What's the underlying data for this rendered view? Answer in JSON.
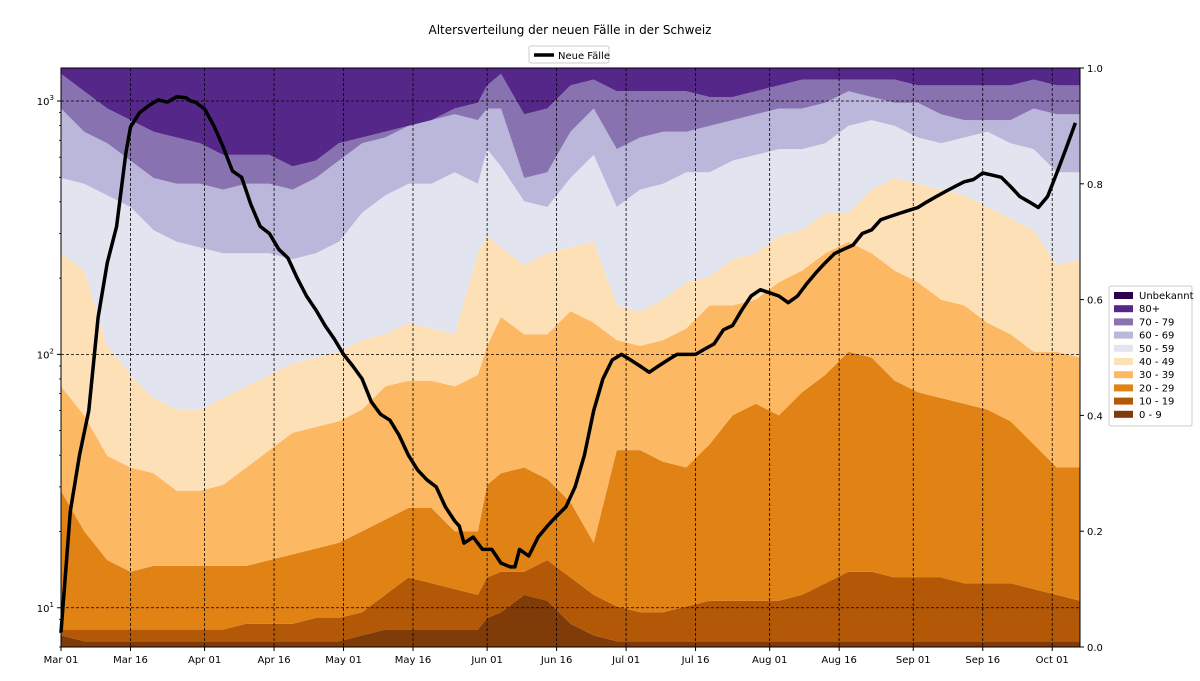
{
  "chart_data": {
    "type": "area",
    "stacking": "fraction",
    "title": "Altersverteilung der neuen Fälle in der Schweiz",
    "x_tick_labels": [
      "Mar 01",
      "Mar 16",
      "Apr 01",
      "Apr 16",
      "May 01",
      "May 16",
      "Jun 01",
      "Jun 16",
      "Jul 01",
      "Jul 16",
      "Aug 01",
      "Aug 16",
      "Sep 01",
      "Sep 16",
      "Oct 01"
    ],
    "x_tick_days": [
      0,
      15,
      31,
      46,
      61,
      76,
      92,
      107,
      122,
      137,
      153,
      168,
      184,
      199,
      214
    ],
    "x_range_days": [
      0,
      220
    ],
    "left_axis": {
      "scale": "log",
      "range": [
        7,
        1350
      ],
      "ticks": [
        {
          "value": 10,
          "base": "10",
          "exp": "1"
        },
        {
          "value": 100,
          "base": "10",
          "exp": "2"
        },
        {
          "value": 1000,
          "base": "10",
          "exp": "3"
        }
      ]
    },
    "right_axis": {
      "range": [
        0,
        1
      ],
      "tick_values": [
        0,
        0.2,
        0.4,
        0.6,
        0.8,
        1.0
      ],
      "tick_labels": [
        "0.0",
        "0.2",
        "0.4",
        "0.6",
        "0.8",
        "1.0"
      ]
    },
    "grid": "dashed",
    "area_legend_position": "right",
    "area_series": [
      {
        "name": "0 - 9",
        "color": "#7f3b08"
      },
      {
        "name": "10 - 19",
        "color": "#b35806"
      },
      {
        "name": "20 - 29",
        "color": "#e08214"
      },
      {
        "name": "30 - 39",
        "color": "#fdb863"
      },
      {
        "name": "40 - 49",
        "color": "#fee0b6"
      },
      {
        "name": "50 - 59",
        "color": "#e2e4f0"
      },
      {
        "name": "60 - 69",
        "color": "#bbb7da"
      },
      {
        "name": "70 - 79",
        "color": "#8873b0"
      },
      {
        "name": "80+",
        "color": "#542788"
      },
      {
        "name": "Unbekannt",
        "color": "#2d004b"
      }
    ],
    "cumulative_boundaries": {
      "days": [
        0,
        5,
        10,
        15,
        20,
        25,
        30,
        35,
        40,
        45,
        50,
        55,
        60,
        65,
        70,
        75,
        80,
        85,
        90,
        92,
        95,
        100,
        105,
        110,
        115,
        120,
        125,
        130,
        135,
        140,
        145,
        150,
        155,
        160,
        165,
        170,
        175,
        180,
        185,
        190,
        195,
        200,
        205,
        210,
        215,
        220
      ],
      "b1": [
        0.02,
        0.01,
        0.01,
        0.01,
        0.01,
        0.01,
        0.01,
        0.01,
        0.01,
        0.01,
        0.01,
        0.01,
        0.01,
        0.02,
        0.03,
        0.03,
        0.03,
        0.03,
        0.03,
        0.05,
        0.06,
        0.09,
        0.08,
        0.04,
        0.02,
        0.01,
        0.01,
        0.01,
        0.01,
        0.01,
        0.01,
        0.01,
        0.01,
        0.01,
        0.01,
        0.01,
        0.01,
        0.01,
        0.01,
        0.01,
        0.01,
        0.01,
        0.01,
        0.01,
        0.01,
        0.01
      ],
      "b2": [
        0.03,
        0.03,
        0.03,
        0.03,
        0.03,
        0.03,
        0.03,
        0.03,
        0.04,
        0.04,
        0.04,
        0.05,
        0.05,
        0.06,
        0.09,
        0.12,
        0.11,
        0.1,
        0.09,
        0.12,
        0.13,
        0.13,
        0.15,
        0.12,
        0.09,
        0.07,
        0.06,
        0.06,
        0.07,
        0.08,
        0.08,
        0.08,
        0.08,
        0.09,
        0.11,
        0.13,
        0.13,
        0.12,
        0.12,
        0.12,
        0.11,
        0.11,
        0.11,
        0.1,
        0.09,
        0.08
      ],
      "b3": [
        0.27,
        0.2,
        0.15,
        0.13,
        0.14,
        0.14,
        0.14,
        0.14,
        0.14,
        0.15,
        0.16,
        0.17,
        0.18,
        0.2,
        0.22,
        0.24,
        0.24,
        0.2,
        0.2,
        0.28,
        0.3,
        0.31,
        0.29,
        0.25,
        0.18,
        0.34,
        0.34,
        0.32,
        0.31,
        0.35,
        0.4,
        0.42,
        0.4,
        0.44,
        0.47,
        0.51,
        0.5,
        0.46,
        0.44,
        0.43,
        0.42,
        0.41,
        0.39,
        0.35,
        0.31,
        0.31
      ],
      "b4": [
        0.45,
        0.4,
        0.33,
        0.31,
        0.3,
        0.27,
        0.27,
        0.28,
        0.31,
        0.34,
        0.37,
        0.38,
        0.39,
        0.41,
        0.45,
        0.46,
        0.46,
        0.45,
        0.47,
        0.52,
        0.57,
        0.54,
        0.54,
        0.58,
        0.56,
        0.53,
        0.52,
        0.53,
        0.55,
        0.59,
        0.59,
        0.6,
        0.63,
        0.65,
        0.68,
        0.7,
        0.68,
        0.65,
        0.63,
        0.6,
        0.59,
        0.56,
        0.54,
        0.51,
        0.51,
        0.5
      ],
      "b5": [
        0.68,
        0.65,
        0.52,
        0.47,
        0.43,
        0.41,
        0.41,
        0.43,
        0.45,
        0.47,
        0.49,
        0.5,
        0.51,
        0.53,
        0.54,
        0.56,
        0.55,
        0.54,
        0.68,
        0.71,
        0.69,
        0.66,
        0.68,
        0.69,
        0.7,
        0.59,
        0.58,
        0.6,
        0.63,
        0.64,
        0.67,
        0.68,
        0.71,
        0.72,
        0.75,
        0.75,
        0.79,
        0.81,
        0.8,
        0.79,
        0.78,
        0.76,
        0.74,
        0.72,
        0.66,
        0.67
      ],
      "b6": [
        0.81,
        0.8,
        0.78,
        0.76,
        0.72,
        0.7,
        0.69,
        0.68,
        0.68,
        0.68,
        0.67,
        0.68,
        0.7,
        0.75,
        0.78,
        0.8,
        0.8,
        0.82,
        0.8,
        0.86,
        0.83,
        0.77,
        0.76,
        0.81,
        0.85,
        0.76,
        0.79,
        0.8,
        0.82,
        0.82,
        0.84,
        0.85,
        0.86,
        0.86,
        0.87,
        0.9,
        0.91,
        0.9,
        0.88,
        0.87,
        0.88,
        0.89,
        0.87,
        0.86,
        0.82,
        0.82
      ],
      "b7": [
        0.93,
        0.89,
        0.87,
        0.84,
        0.81,
        0.8,
        0.8,
        0.79,
        0.8,
        0.8,
        0.79,
        0.81,
        0.84,
        0.87,
        0.88,
        0.9,
        0.91,
        0.92,
        0.91,
        0.93,
        0.93,
        0.81,
        0.82,
        0.89,
        0.93,
        0.86,
        0.88,
        0.89,
        0.89,
        0.9,
        0.91,
        0.92,
        0.93,
        0.93,
        0.94,
        0.96,
        0.95,
        0.94,
        0.94,
        0.92,
        0.91,
        0.91,
        0.91,
        0.93,
        0.92,
        0.92
      ],
      "b8": [
        0.99,
        0.96,
        0.93,
        0.91,
        0.89,
        0.88,
        0.87,
        0.85,
        0.85,
        0.85,
        0.83,
        0.84,
        0.87,
        0.88,
        0.89,
        0.9,
        0.91,
        0.93,
        0.94,
        0.97,
        0.99,
        0.92,
        0.93,
        0.97,
        0.98,
        0.96,
        0.96,
        0.96,
        0.96,
        0.95,
        0.95,
        0.96,
        0.97,
        0.98,
        0.98,
        0.98,
        0.98,
        0.98,
        0.97,
        0.97,
        0.97,
        0.97,
        0.97,
        0.98,
        0.97,
        0.97
      ],
      "b9": [
        1,
        1,
        1,
        1,
        1,
        1,
        1,
        1,
        1,
        1,
        1,
        1,
        1,
        1,
        1,
        1,
        1,
        1,
        1,
        1,
        1,
        1,
        1,
        1,
        1,
        1,
        1,
        1,
        1,
        1,
        1,
        1,
        1,
        1,
        1,
        1,
        1,
        1,
        1,
        1,
        1,
        1,
        1,
        1,
        1,
        1
      ]
    },
    "line_series": {
      "name": "Neue Fälle",
      "color": "#000000",
      "legend_position": "top-center",
      "days": [
        0,
        2,
        4,
        6,
        8,
        10,
        12,
        14,
        15,
        17,
        19,
        21,
        23,
        25,
        27,
        28,
        29,
        31,
        33,
        35,
        37,
        39,
        41,
        43,
        45,
        47,
        49,
        51,
        53,
        55,
        57,
        59,
        61,
        63,
        65,
        67,
        69,
        71,
        73,
        75,
        77,
        79,
        81,
        83,
        85,
        86,
        87,
        89,
        91,
        93,
        95,
        97,
        98,
        99,
        101,
        103,
        105,
        107,
        109,
        111,
        113,
        115,
        117,
        119,
        121,
        123,
        125,
        127,
        129,
        131,
        133,
        135,
        137,
        139,
        141,
        143,
        145,
        147,
        149,
        151,
        153,
        155,
        157,
        159,
        161,
        163,
        165,
        167,
        169,
        171,
        173,
        175,
        177,
        179,
        181,
        183,
        185,
        187,
        189,
        191,
        193,
        195,
        197,
        199,
        201,
        203,
        205,
        207,
        209,
        211,
        213,
        215,
        217,
        219
      ],
      "values": [
        8,
        24,
        40,
        60,
        140,
        230,
        320,
        620,
        790,
        900,
        960,
        1010,
        990,
        1040,
        1030,
        1000,
        990,
        930,
        800,
        660,
        530,
        500,
        390,
        320,
        300,
        260,
        240,
        200,
        170,
        150,
        130,
        115,
        100,
        90,
        80,
        65,
        58,
        55,
        48,
        40,
        35,
        32,
        30,
        25,
        22,
        21,
        18,
        19,
        17,
        17,
        15,
        14.5,
        14.5,
        17,
        16,
        19,
        21,
        23,
        25,
        30,
        40,
        60,
        80,
        95,
        100,
        95,
        90,
        85,
        90,
        95,
        100,
        100,
        100,
        105,
        110,
        125,
        130,
        150,
        170,
        180,
        175,
        170,
        160,
        170,
        190,
        210,
        230,
        250,
        260,
        270,
        300,
        310,
        340,
        350,
        360,
        370,
        380,
        400,
        420,
        440,
        460,
        480,
        490,
        520,
        510,
        500,
        460,
        420,
        400,
        380,
        420,
        520,
        650,
        820
      ]
    },
    "area_legend_title_order": [
      "Unbekannt",
      "80+",
      "70 - 79",
      "60 - 69",
      "50 - 59",
      "40 - 49",
      "30 - 39",
      "20 - 29",
      "10 - 19",
      "0 - 9"
    ]
  }
}
